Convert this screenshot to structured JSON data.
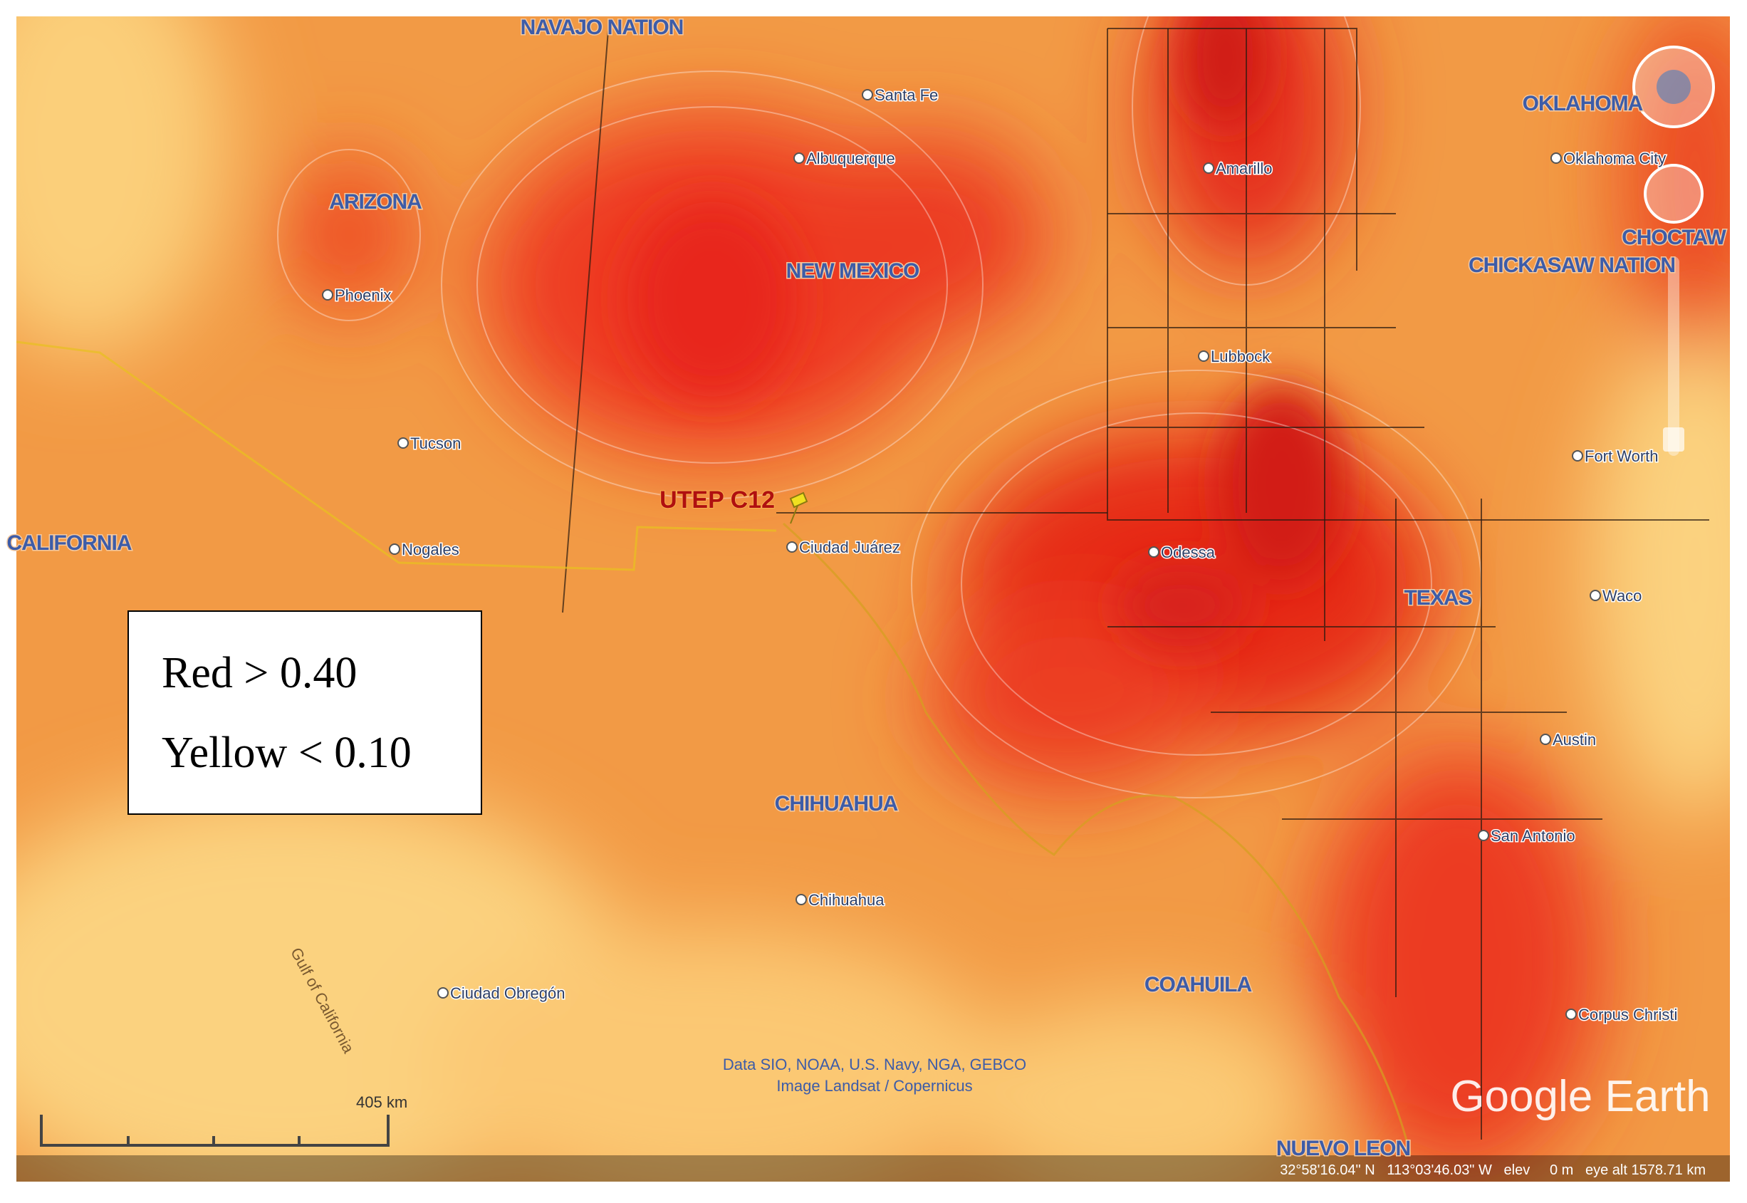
{
  "map": {
    "regions": [
      "NAVAJO NATION",
      "OKLAHOMA",
      "CHOCTAW",
      "CHICKASAW NATION",
      "ARIZONA",
      "NEW MEXICO",
      "CALIFORNIA",
      "TEXAS",
      "CHIHUAHUA",
      "COAHUILA",
      "NUEVO LEON"
    ],
    "cities": [
      "Santa Fe",
      "Albuquerque",
      "Amarillo",
      "Oklahoma City",
      "Phoenix",
      "Lubbock",
      "Tucson",
      "Fort Worth",
      "Ciudad Juárez",
      "Odessa",
      "Nogales",
      "Waco",
      "Austin",
      "San Antonio",
      "Chihuahua",
      "Ciudad Obregón",
      "Corpus Christi"
    ],
    "water": "Gulf of California",
    "marker": "UTEP C12",
    "attribution": [
      "Data SIO, NOAA, U.S. Navy, NGA, GEBCO",
      "Image Landsat / Copernicus"
    ],
    "scale": "405 km",
    "logo": "Google Earth",
    "status": "32°58'16.04\" N   113°03'46.03\" W   elev     0 m   eye alt 1578.71 km"
  },
  "legend": [
    "Red > 0.40",
    "Yellow < 0.10"
  ]
}
